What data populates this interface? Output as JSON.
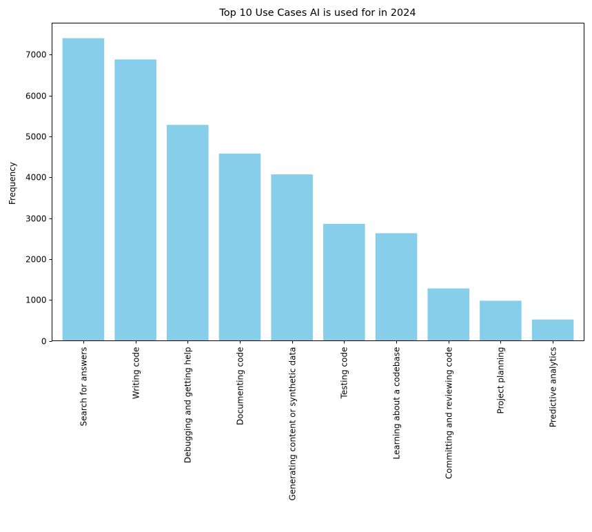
{
  "chart_data": {
    "type": "bar",
    "title": "Top 10 Use Cases AI is used for in 2024",
    "xlabel": "",
    "ylabel": "Frequency",
    "categories": [
      "Search for answers",
      "Writing code",
      "Debugging and getting help",
      "Documenting code",
      "Generating content or synthetic data",
      "Testing code",
      "Learning about a codebase",
      "Committing and reviewing code",
      "Project planning",
      "Predictive analytics"
    ],
    "values": [
      7400,
      6880,
      5280,
      4580,
      4070,
      2860,
      2630,
      1280,
      980,
      520
    ],
    "ylim": [
      0,
      7770
    ],
    "yticks": [
      0,
      1000,
      2000,
      3000,
      4000,
      5000,
      6000,
      7000
    ],
    "bar_color": "#87ceeb",
    "grid": false,
    "legend": "none"
  }
}
